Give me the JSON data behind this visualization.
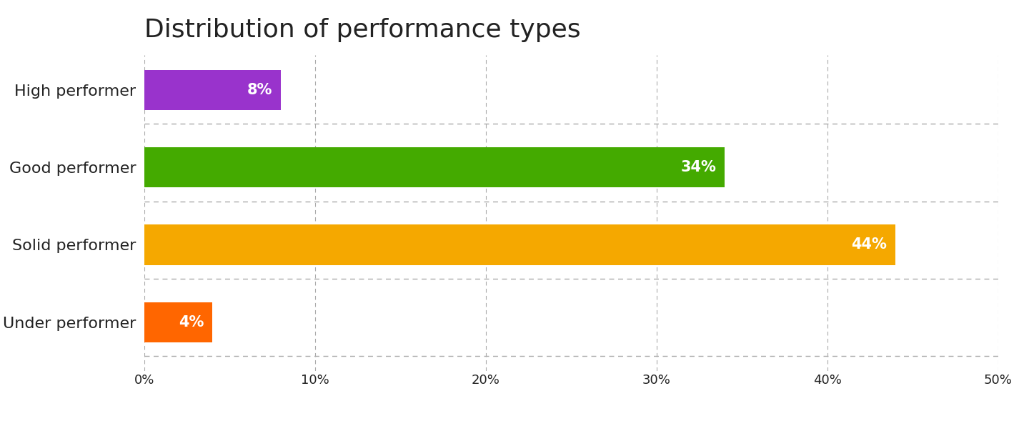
{
  "title": "Distribution of performance types",
  "categories": [
    "High performer",
    "Good performer",
    "Solid performer",
    "Under performer"
  ],
  "values": [
    8,
    34,
    44,
    4
  ],
  "bar_colors": [
    "#9933cc",
    "#44aa00",
    "#f5a800",
    "#ff6600"
  ],
  "bar_labels": [
    "8%",
    "34%",
    "44%",
    "4%"
  ],
  "xlim": [
    0,
    50
  ],
  "xticks": [
    0,
    10,
    20,
    30,
    40,
    50
  ],
  "xtick_labels": [
    "0%",
    "10%",
    "20%",
    "30%",
    "40%",
    "50%"
  ],
  "title_fontsize": 26,
  "label_fontsize": 16,
  "bar_label_fontsize": 15,
  "tick_fontsize": 13,
  "background_color": "#ffffff",
  "grid_color": "#aaaaaa",
  "text_color": "#222222"
}
